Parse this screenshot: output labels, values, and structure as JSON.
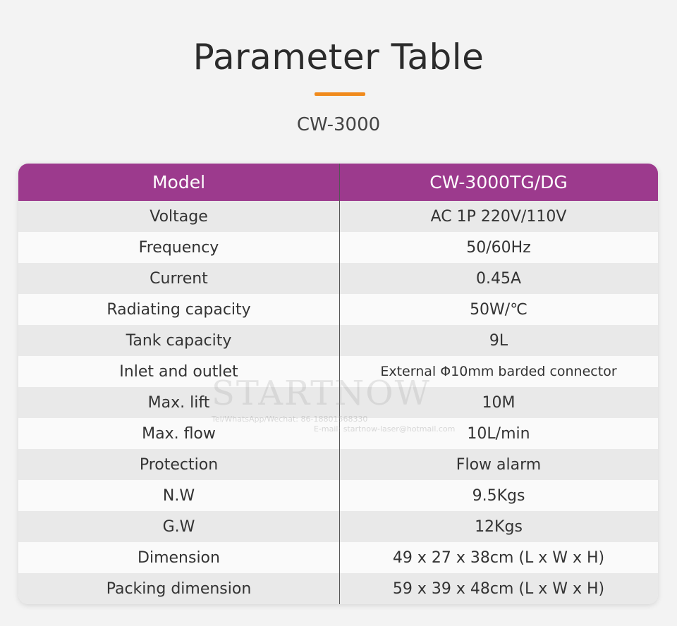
{
  "title": "Parameter Table",
  "subtitle": "CW-3000",
  "colors": {
    "header": "#9c3a8d",
    "accent": "#f08a1c"
  },
  "table": {
    "header": {
      "left": "Model",
      "right": "CW-3000TG/DG"
    },
    "rows": [
      {
        "label": "Voltage",
        "value": "AC 1P 220V/110V"
      },
      {
        "label": "Frequency",
        "value": "50/60Hz"
      },
      {
        "label": "Current",
        "value": "0.45A"
      },
      {
        "label": "Radiating capacity",
        "value": "50W/℃"
      },
      {
        "label": "Tank capacity",
        "value": "9L"
      },
      {
        "label": "Inlet and outlet",
        "value": "External Φ10mm barded connector"
      },
      {
        "label": "Max. lift",
        "value": "10M"
      },
      {
        "label": "Max. flow",
        "value": "10L/min"
      },
      {
        "label": "Protection",
        "value": "Flow alarm"
      },
      {
        "label": "N.W",
        "value": "9.5Kgs"
      },
      {
        "label": "G.W",
        "value": "12Kgs"
      },
      {
        "label": "Dimension",
        "value": "49 x 27 x 38cm (L x W x H)"
      },
      {
        "label": "Packing dimension",
        "value": "59 x 39 x 48cm (L x W x H)"
      }
    ]
  },
  "watermark": {
    "brand": "STARTNOW",
    "contact": "Tel/WhatsApp/Wechat: 86-18801568330",
    "email": "E-mail: startnow-laser@hotmail.com"
  }
}
